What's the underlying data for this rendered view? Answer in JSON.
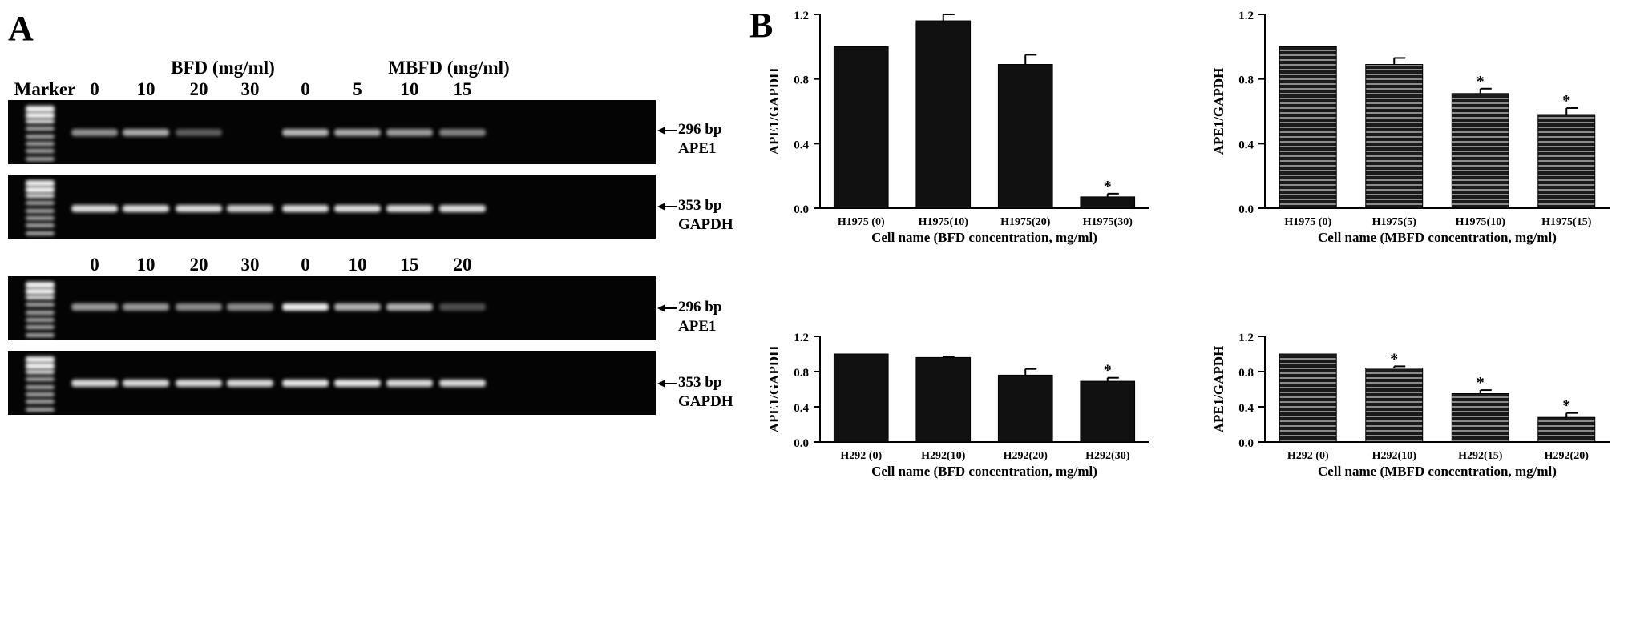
{
  "panel_a": {
    "letter": "A",
    "marker_label": "Marker",
    "top_set": {
      "bfd_header": "BFD (mg/ml)",
      "mbfd_header": "MBFD (mg/ml)",
      "lanes": [
        "0",
        "10",
        "20",
        "30",
        "0",
        "5",
        "10",
        "15"
      ]
    },
    "bottom_set": {
      "lanes": [
        "0",
        "10",
        "20",
        "30",
        "0",
        "10",
        "15",
        "20"
      ]
    },
    "annotations": {
      "ape1_bp": "296 bp",
      "ape1": "APE1",
      "gapdh_bp": "353 bp",
      "gapdh": "GAPDH"
    },
    "band_intensity": {
      "gel1_ape1": [
        0.55,
        0.65,
        0.35,
        0.0,
        0.7,
        0.65,
        0.6,
        0.5
      ],
      "gel2_gapdh": [
        0.85,
        0.85,
        0.85,
        0.8,
        0.85,
        0.85,
        0.85,
        0.85
      ],
      "gel3_ape1": [
        0.6,
        0.6,
        0.55,
        0.55,
        0.95,
        0.7,
        0.7,
        0.3
      ],
      "gel4_gapdh": [
        0.85,
        0.85,
        0.85,
        0.85,
        0.9,
        0.9,
        0.85,
        0.85
      ]
    }
  },
  "panel_b": {
    "letter": "B"
  },
  "chart_data": [
    {
      "type": "bar",
      "categories": [
        "H1975 (0)",
        "H1975(10)",
        "H1975(20)",
        "H1975(30)"
      ],
      "values": [
        1.0,
        1.16,
        0.89,
        0.07
      ],
      "errors": [
        0.0,
        0.04,
        0.06,
        0.02
      ],
      "significant": [
        false,
        false,
        false,
        true
      ],
      "xlabel": "Cell name (BFD concentration, mg/ml)",
      "ylabel": "APE1/GAPDH",
      "ylim": [
        0,
        1.2
      ],
      "yticks": [
        "0.0",
        "0.4",
        "0.8",
        "1.2"
      ],
      "fill": "solid",
      "significance_mark": "*"
    },
    {
      "type": "bar",
      "categories": [
        "H1975 (0)",
        "H1975(5)",
        "H1975(10)",
        "H1975(15)"
      ],
      "values": [
        1.0,
        0.89,
        0.71,
        0.58
      ],
      "errors": [
        0.0,
        0.04,
        0.03,
        0.04
      ],
      "significant": [
        false,
        false,
        true,
        true
      ],
      "xlabel": "Cell name (MBFD concentration, mg/ml)",
      "ylabel": "APE1/GAPDH",
      "ylim": [
        0,
        1.2
      ],
      "yticks": [
        "0.0",
        "0.4",
        "0.8",
        "1.2"
      ],
      "fill": "striped",
      "significance_mark": "*"
    },
    {
      "type": "bar",
      "categories": [
        "H292 (0)",
        "H292(10)",
        "H292(20)",
        "H292(30)"
      ],
      "values": [
        1.0,
        0.96,
        0.76,
        0.69
      ],
      "errors": [
        0.0,
        0.01,
        0.07,
        0.04
      ],
      "significant": [
        false,
        false,
        false,
        true
      ],
      "xlabel": "Cell name (BFD concentration, mg/ml)",
      "ylabel": "APE1/GAPDH",
      "ylim": [
        0,
        1.2
      ],
      "yticks": [
        "0.0",
        "0.4",
        "0.8",
        "1.2"
      ],
      "fill": "solid",
      "significance_mark": "*"
    },
    {
      "type": "bar",
      "categories": [
        "H292 (0)",
        "H292(10)",
        "H292(15)",
        "H292(20)"
      ],
      "values": [
        1.0,
        0.84,
        0.55,
        0.28
      ],
      "errors": [
        0.0,
        0.02,
        0.04,
        0.05
      ],
      "significant": [
        false,
        true,
        true,
        true
      ],
      "xlabel": "Cell name (MBFD concentration, mg/ml)",
      "ylabel": "APE1/GAPDH",
      "ylim": [
        0,
        1.2
      ],
      "yticks": [
        "0.0",
        "0.4",
        "0.8",
        "1.2"
      ],
      "fill": "striped",
      "significance_mark": "*"
    }
  ]
}
